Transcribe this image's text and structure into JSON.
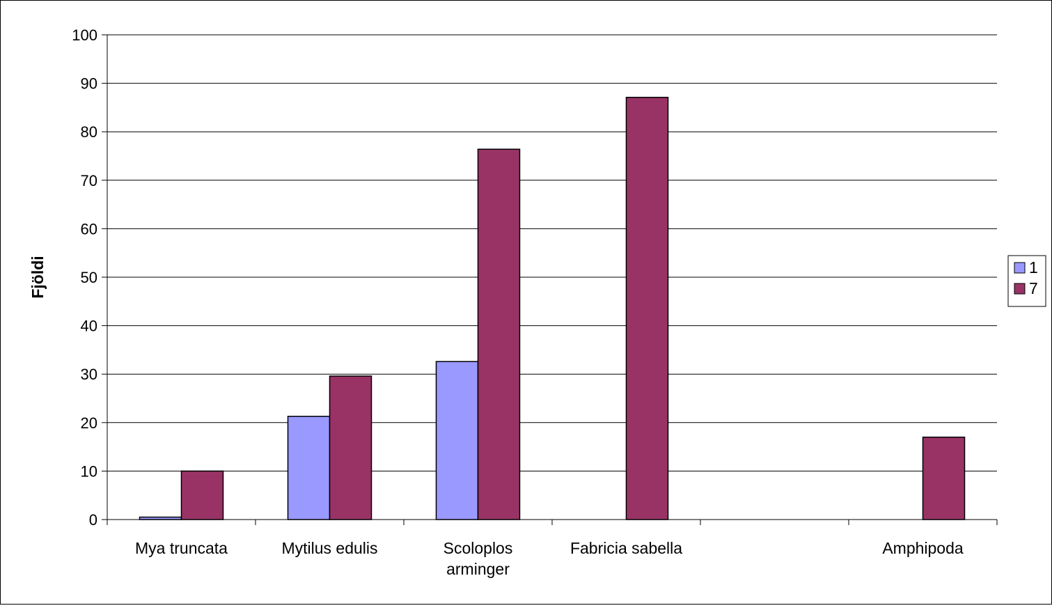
{
  "chart_data": {
    "type": "bar",
    "title": "",
    "xlabel": "",
    "ylabel": "Fjöldi",
    "ylim": [
      0,
      100
    ],
    "yticks": [
      "0",
      "10",
      "20",
      "30",
      "40",
      "50",
      "60",
      "70",
      "80",
      "90",
      "100"
    ],
    "grid": true,
    "legend_position": "right",
    "categories": [
      [
        "Mya truncata"
      ],
      [
        "Mytilus edulis"
      ],
      [
        "Scoloplos",
        "arminger"
      ],
      [
        "Fabricia sabella"
      ],
      [
        ""
      ],
      [
        "Amphipoda"
      ]
    ],
    "series": [
      {
        "name": "1",
        "color": "#9999ff",
        "values": [
          0.5,
          21.3,
          32.6,
          0,
          0,
          0
        ]
      },
      {
        "name": "7",
        "color": "#993366",
        "values": [
          10,
          29.6,
          76.4,
          87.1,
          0,
          17
        ]
      }
    ]
  }
}
